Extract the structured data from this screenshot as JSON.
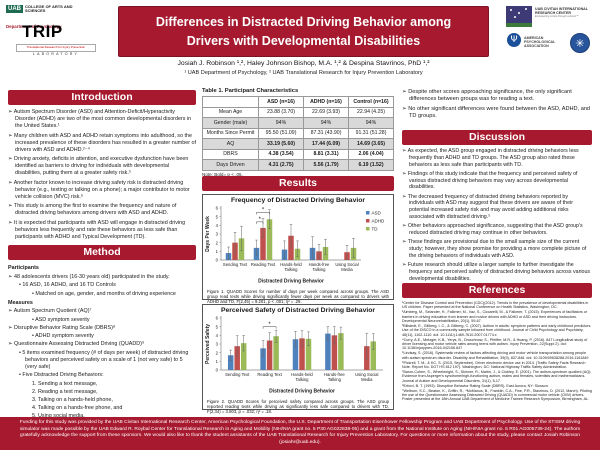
{
  "poster": {
    "title_line1": "Differences in Distracted Driving Behavior among",
    "title_line2": "Drivers with Developmental Disabilities",
    "authors": "Josiah J. Robinson ¹,², Haley Johnson Bishop, M.A. ¹,² & Despina Stavrinos, PhD ¹,²",
    "affiliations": "¹ UAB Department of Psychology, ² UAB Translational Research for Injury Prevention Laboratory",
    "accent_color": "#A6192E"
  },
  "logos": {
    "uab": "UAB",
    "college": "COLLEGE OF ARTS AND SCIENCES",
    "department": "Department of Psychology",
    "trip": "TRIP",
    "trip_sub": "Translational Research for Injury Prevention",
    "trip_lab": "LABORATORY",
    "civitan_lines": "UAB CIVITAN INTERNATIONAL RESEARCH CENTER",
    "civitan_tagline": "Empowering minds through science™",
    "apa_psi": "Ψ",
    "apa_lines": "AMERICAN PSYCHOLOGICAL ASSOCIATION",
    "usdot_glyph": "✳"
  },
  "sections": {
    "introduction": {
      "heading": "Introduction",
      "bullets": [
        "➢ Autism Spectrum Disorder (ASD) and Attention-Deficit/Hyperactivity Disorder (ADHD) are two of the most common developmental disorders in the United States.¹",
        "➢ Many children with ASD and ADHD retain symptoms into adulthood, so the increased prevalence of these disorders has resulted in a greater number of drivers with ASD and ADHD.²⁻⁴",
        "➢ Driving anxiety, deficits in attention, and executive dysfunction have been identified as barriers to driving for individuals with developmental disabilities, putting them at a greater safety risk.⁵",
        "➢ Another factor known to increase driving safety risk is distracted driving behavior (e.g., texting or talking on a phone); a major contributor to motor vehicle collision (MVC) risk.⁶",
        "➢ This study is among the first to examine the frequency and nature of distracted driving behaviors among drivers with ASD and ADHD.",
        "➢ It is expected that participants with ASD will engage in distracted driving behaviors less frequently and rate these behaviors as less safe than participants with ADHD and Typical Development (TD)."
      ]
    },
    "method": {
      "heading": "Method",
      "lines": [
        {
          "text": "Participants",
          "level": 0,
          "head": true
        },
        {
          "text": "➢ 48 adolescents drivers (16-30 years old) participated in the study.",
          "level": 1
        },
        {
          "text": "• 16 ASD, 16 ADHD, and 16 TD Controls",
          "level": 2
        },
        {
          "text": "• Matched on age, gender, and months of driving experience",
          "level": 3
        },
        {
          "text": "Measures",
          "level": 0,
          "head": true
        },
        {
          "text": "➢ Autism Spectrum Quotient (AQ)⁷",
          "level": 1
        },
        {
          "text": "• ASD symptom severity",
          "level": 3
        },
        {
          "text": "➢ Disruptive Behavior Rating Scale (DBRS)⁸",
          "level": 1
        },
        {
          "text": "• ADHD symptom severity",
          "level": 3
        },
        {
          "text": "➢ Questionnaire Assessing Distracted Driving (QUADD)⁹",
          "level": 1
        },
        {
          "text": "• 5 items examined frequency (# of days per week) of distracted driving behaviors and perceived safety on a scale of 1 (not very safe) to 5 (very safe)",
          "level": 2
        },
        {
          "text": "• Five Distracted Driving Behaviors:",
          "level": 2
        },
        {
          "text": "1.  Sending a text message,",
          "level": 3
        },
        {
          "text": "2.  Reading a text message,",
          "level": 3
        },
        {
          "text": "3.  Talking on a hands-held phone,",
          "level": 3
        },
        {
          "text": "4.  Talking on a hands-free phone, and",
          "level": 3
        },
        {
          "text": "5.  Using social media.",
          "level": 3
        }
      ]
    },
    "results": {
      "heading": "Results"
    },
    "discussion": {
      "heading": "Discussion",
      "bullets": [
        "➢ As expected, the ASD group engaged in distracted driving behaviors less frequently than ADHD and TD groups. The ASD group also rated these behaviors as less safe than participants with TD.",
        "➢ Findings of this study indicate that the frequency and perceived safety of various distracted driving behaviors may vary across developmental disabilities.",
        "➢ The decreased frequency of distracted driving behaviors reported by individuals with ASD may suggest that these drivers are aware of their potential increased safety risk and may avoid adding additional risks associated with distracted driving.⁵",
        "➢ Other behaviors approached significance, suggesting that the ASD group's reduced distracted driving may continue in other behaviors.",
        "➢ These findings are provisional due to the small sample size of the current study; however, they show promise for providing a more complete picture of the driving behaviors of individuals with ASD.",
        "➢ Future research should utilize a larger sample to further investigate the frequency and perceived safety of distracted driving behaviors across various developmental disabilities."
      ]
    },
    "references": {
      "heading": "References",
      "entries": [
        "¹Center for Disease Control and Prevention (CDC)(2012). Trends in the prevalence of developmental disabilities in US children. Paper presented at the National Conference on Health Statistics, Washington, DC.",
        "²Almberg, M., Selander, H., Falkmer, M., Vaz, S., Ciccarelli, M., & Falkmer, T. (2015). Experiences of facilitators or barriers in driving education from learner and novice drivers with ADHD or ASD and their driving instructors. Developmental Neurorehabilitation, 20(1), 59-67.",
        "³Billstedt, E., Gillberg, I. C., & Gillberg, C. (2007). Autism in adults: symptom patterns and early childhood predictors. Use of the DISCO in a community sample followed from childhood. Journal of Child Psychology and Psychiatry, 48(11), 1102-1110. doi: 10.1111/j.1469-7610.2007.01774.x",
        "⁴Curry, A.E., Metzger, K.B., Yerys, B., Druschnow, S., Pfeiffer, M.R., & Huang, P. (2016). 847 Longitudinal study of driver licensing and motor vehicle rates among teens with autism. Injury Prevention, 22(Suppl 2). doi: 10.1136/injuryprev-2016-042156.847",
        "⁵Lindsay, S. (2016). Systematic review of factors affecting driving and motor vehicle transportation among people with autism spectrum disorder. Disability and Rehabilitation, 39(9), 837-846. doi: 10.3109/09638288.2016.1161849",
        "⁶Pickrell, T. M., & KC, S. (2015, September). Driver electronic device use in 2014. (Traffic Safety Facts Research Note. Report No. DOT HS 812 197). Washington, DC: National Highway Traffic Safety Administration.",
        "⁷Baron-Cohen, S., Wheelwright, S., Skinner, R., Martin, J., & Clubley, E. (2001). The autism-spectrum quotient (AQ): Evidence from Asperger's syndrome/high-functioning autism, males and females, scientists and mathematicians. Journal of Autism and Developmental Disorders, 31(1), 5-17.",
        "⁸Erford, B. T. (1993). Disruptive Behavior Rating Scale (DBRS). East Aurora, NY: Slosson.",
        "⁹Welburn, S.C., Beaton, K., Griffin, R., *McManus, B., Franklin, C.A., Fine, P.R., Stavrinos, D. (2012, March). Piloting the use of the Questionnaire Assessing Distracted Driving (QUADD) in commercial motor vehicle (CMV) drivers. Poster presented at the 18th Annual UAB Department of Medicine Trainee Research Symposium, Birmingham, AL."
      ]
    }
  },
  "right_top_bullets": [
    "➢ Despite other scores approaching significance, the only significant differences between groups was for reading a text.",
    "➢ No other significant differences were found between the ASD, ADHD, and TD groups."
  ],
  "table1": {
    "title": "Table 1.  Participant Characteristics",
    "columns": [
      "",
      "ASD (n=16)",
      "ADHD (n=16)",
      "Control (n=16)"
    ],
    "rows": [
      {
        "label": "Mean Age",
        "values": [
          "23.88 (3.70)",
          "22.69 (3.93)",
          "22.94 (4.25)"
        ],
        "bold": false,
        "shaded": false
      },
      {
        "label": "Gender (male)",
        "values": [
          "94%",
          "94%",
          "94%"
        ],
        "bold": false,
        "shaded": true
      },
      {
        "label": "Months Since Permit",
        "values": [
          "95.50 (51.09)",
          "87.31 (43.90)",
          "91.31 (51.28)"
        ],
        "bold": false,
        "shaded": false
      },
      {
        "label": "AQ",
        "values": [
          "33.19 (5.60)",
          "17.44 (6.09)",
          "14.69 (3.65)"
        ],
        "bold": true,
        "shaded": true
      },
      {
        "label": "DBRS",
        "values": [
          "4.38 (3.54)",
          "8.81 (3.31)",
          "2.06 (4.04)"
        ],
        "bold": true,
        "shaded": false
      },
      {
        "label": "Days Driven",
        "values": [
          "4.31 (2.75)",
          "5.56 (1.79)",
          "6.19 (1.52)"
        ],
        "bold": true,
        "shaded": true
      }
    ],
    "note": "Note: Bold= p < .05."
  },
  "chart_data": [
    {
      "type": "bar",
      "title": "Frequency of Distracted Driving Behavior",
      "xlabel": "Distracted Driving Behavior",
      "ylabel": "Days Per Week",
      "ylim": [
        0,
        6
      ],
      "ytick_step": 1,
      "legend_position": "right",
      "categories": [
        [
          "Sending Text"
        ],
        [
          "Reading Text"
        ],
        [
          "Hands-held",
          "Talking"
        ],
        [
          "Hands-free",
          "Talking"
        ],
        [
          "Using Social",
          "Media"
        ]
      ],
      "series": [
        {
          "name": "ASD",
          "color": "#4F81BD",
          "values": [
            0.8,
            1.4,
            1.2,
            1.4,
            null
          ],
          "errors": [
            0.7,
            0.9,
            1.0,
            1.3,
            null
          ]
        },
        {
          "name": "ADHD",
          "color": "#C0504D",
          "values": [
            2.0,
            3.7,
            2.8,
            1.0,
            0.9
          ],
          "errors": [
            1.2,
            1.1,
            1.3,
            0.8,
            0.8
          ]
        },
        {
          "name": "TD",
          "color": "#9BBB59",
          "values": [
            2.5,
            4.7,
            1.3,
            1.5,
            1.4
          ],
          "errors": [
            1.4,
            1.1,
            0.9,
            0.9,
            1.1
          ]
        }
      ],
      "annotations": [
        {
          "category": 1,
          "series_from": 0,
          "series_to": 1,
          "at_y": 4.4,
          "label": "*"
        },
        {
          "category": 1,
          "series_from": 0,
          "series_to": 2,
          "at_y": 5.5,
          "label": "*"
        }
      ],
      "caption": "Figure 1. QUADD Scores for number of days per week compared across groups. The ASD group read texts while driving significantly fewer days per week as compared to drivers with ADHD and TD, F(2,45) = 9.201, p < .001; η² = .29."
    },
    {
      "type": "bar",
      "title": "Perceived Safety of Distracted Driving Behavior",
      "xlabel": "Distracted Driving Behavior",
      "ylabel": "Perceived Safety",
      "ylim": [
        0,
        6
      ],
      "ytick_step": 1,
      "legend_position": null,
      "categories": [
        [
          "Sending Text"
        ],
        [
          "Reading Text"
        ],
        [
          "Hands-held",
          "Talking"
        ],
        [
          "Hands-free",
          "Talking"
        ],
        [
          "Using Social",
          "Media"
        ]
      ],
      "series": [
        {
          "name": "ASD",
          "color": "#4F81BD",
          "values": [
            1.7,
            2.5,
            3.55,
            4.2,
            null
          ],
          "errors": [
            0.6,
            0.9,
            0.9,
            0.8,
            null
          ]
        },
        {
          "name": "ADHD",
          "color": "#C0504D",
          "values": [
            2.75,
            3.4,
            3.65,
            4.0,
            2.75
          ],
          "errors": [
            1.2,
            0.9,
            0.9,
            1.0,
            1.5
          ]
        },
        {
          "name": "TD",
          "color": "#9BBB59",
          "values": [
            3.1,
            3.9,
            3.6,
            4.25,
            3.3
          ],
          "errors": [
            0.9,
            0.7,
            0.8,
            0.7,
            0.9
          ]
        }
      ],
      "annotations": [
        {
          "category": 1,
          "series_from": 0,
          "series_to": 2,
          "at_y": 5.0,
          "label": "*"
        }
      ],
      "caption": "Figure 2. QUADD Scores for perceived safety compared across groups. The ASD group reported reading texts while driving as significantly less safe compared to drivers with TD, F(2,34) = 3.803, p = .032; η² = .18."
    }
  ],
  "footer": {
    "text": "Funding for this study was provided by the UAB Civitan International Research Center, American Psychological Foundation, the U.S. Department of Transportation Eisenhower Fellowship Program and UAB Department of Psychology. Use of the STISIM driving simulator was made possible by the UAB Edward R. Roybal Center for Translational Research in Aging and Mobility (NIH/NIA grant no. 5 P30 AG022838-05) and a grant from the National Institute on Aging (NIH/NIA grant no. 5 R01 AG005739-24). The authors gratefully acknowledge the support from these sponsors. We would also like to thank the student assistants of the UAB Translational Research for Injury Prevention Laboratory. For questions or more information about the study, please contact Josiah Robinson (josiahr@uab.edu)."
  }
}
